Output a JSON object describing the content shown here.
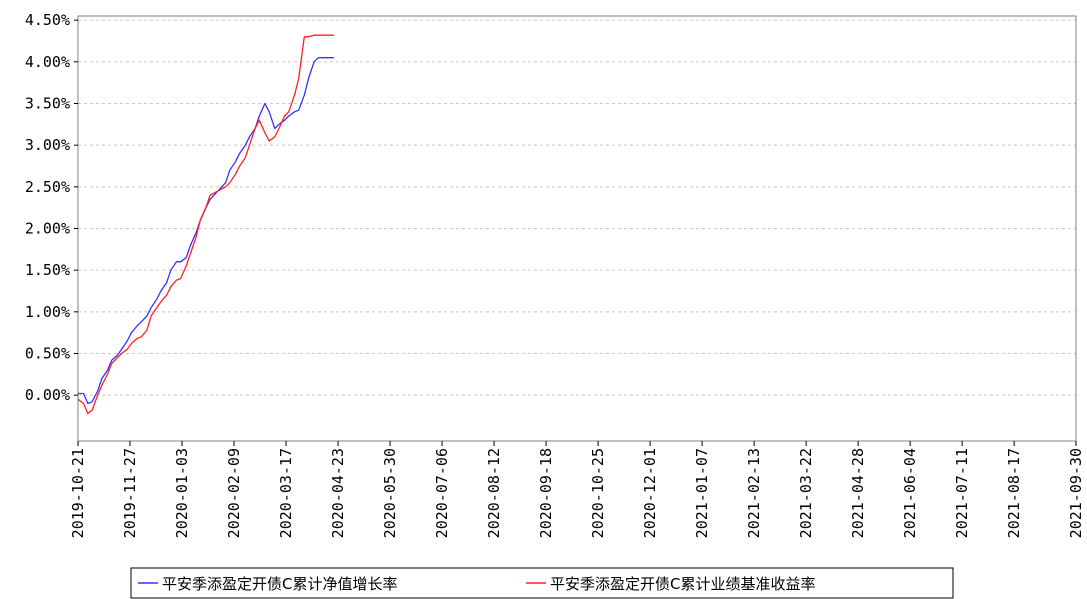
{
  "chart_data": {
    "type": "line",
    "title": "",
    "xlabel": "",
    "ylabel": "",
    "x_ticks": [
      "2019-10-21",
      "2019-11-27",
      "2020-01-03",
      "2020-02-09",
      "2020-03-17",
      "2020-04-23",
      "2020-05-30",
      "2020-07-06",
      "2020-08-12",
      "2020-09-18",
      "2020-10-25",
      "2020-12-01",
      "2021-01-07",
      "2021-02-13",
      "2021-03-22",
      "2021-04-28",
      "2021-06-04",
      "2021-07-11",
      "2021-08-17",
      "2021-09-30"
    ],
    "y_ticks": [
      "0.00%",
      "0.50%",
      "1.00%",
      "1.50%",
      "2.00%",
      "2.50%",
      "3.00%",
      "3.50%",
      "4.00%",
      "4.50%"
    ],
    "ylim": [
      -0.55,
      4.55
    ],
    "y_unit": "%",
    "grid": "horizontal-dashed",
    "legend_position": "bottom",
    "colors": {
      "nav": "#3333ff",
      "benchmark": "#ff2222"
    },
    "series": [
      {
        "name": "平安季添盈定开债C累计净值增长率",
        "color": "#3333ff",
        "x": [
          "2019-10-21",
          "2019-10-25",
          "2019-10-28",
          "2019-10-31",
          "2019-11-04",
          "2019-11-07",
          "2019-11-11",
          "2019-11-14",
          "2019-11-18",
          "2019-11-21",
          "2019-11-25",
          "2019-11-28",
          "2019-12-02",
          "2019-12-05",
          "2019-12-09",
          "2019-12-12",
          "2019-12-16",
          "2019-12-19",
          "2019-12-23",
          "2019-12-26",
          "2019-12-30",
          "2020-01-02",
          "2020-01-06",
          "2020-01-09",
          "2020-01-13",
          "2020-01-16",
          "2020-01-20",
          "2020-01-23",
          "2020-02-03",
          "2020-02-06",
          "2020-02-10",
          "2020-02-13",
          "2020-02-17",
          "2020-02-20",
          "2020-02-24",
          "2020-02-27",
          "2020-03-02",
          "2020-03-05",
          "2020-03-09",
          "2020-03-12",
          "2020-03-16",
          "2020-03-19",
          "2020-03-23",
          "2020-03-26",
          "2020-03-30",
          "2020-04-02",
          "2020-04-06",
          "2020-04-09",
          "2020-04-13",
          "2020-04-16",
          "2020-04-20"
        ],
        "y": [
          0.02,
          0.02,
          -0.1,
          -0.08,
          0.05,
          0.2,
          0.3,
          0.42,
          0.48,
          0.55,
          0.65,
          0.75,
          0.83,
          0.88,
          0.95,
          1.05,
          1.15,
          1.25,
          1.35,
          1.5,
          1.6,
          1.6,
          1.65,
          1.8,
          1.95,
          2.1,
          2.25,
          2.35,
          2.55,
          2.7,
          2.8,
          2.9,
          3.0,
          3.1,
          3.2,
          3.35,
          3.5,
          3.4,
          3.2,
          3.25,
          3.3,
          3.35,
          3.4,
          3.42,
          3.6,
          3.8,
          4.0,
          4.05,
          4.05,
          4.05,
          4.05
        ]
      },
      {
        "name": "平安季添盈定开债C累计业绩基准收益率",
        "color": "#ff2222",
        "x": [
          "2019-10-21",
          "2019-10-25",
          "2019-10-28",
          "2019-10-31",
          "2019-11-04",
          "2019-11-07",
          "2019-11-11",
          "2019-11-14",
          "2019-11-18",
          "2019-11-21",
          "2019-11-25",
          "2019-11-28",
          "2019-12-02",
          "2019-12-05",
          "2019-12-09",
          "2019-12-12",
          "2019-12-16",
          "2019-12-19",
          "2019-12-23",
          "2019-12-26",
          "2019-12-30",
          "2020-01-02",
          "2020-01-06",
          "2020-01-09",
          "2020-01-13",
          "2020-01-16",
          "2020-01-20",
          "2020-01-23",
          "2020-02-03",
          "2020-02-06",
          "2020-02-10",
          "2020-02-13",
          "2020-02-17",
          "2020-02-20",
          "2020-02-24",
          "2020-02-27",
          "2020-03-02",
          "2020-03-05",
          "2020-03-09",
          "2020-03-12",
          "2020-03-16",
          "2020-03-19",
          "2020-03-23",
          "2020-03-26",
          "2020-03-30",
          "2020-04-02",
          "2020-04-06",
          "2020-04-09",
          "2020-04-13",
          "2020-04-16",
          "2020-04-20"
        ],
        "y": [
          -0.05,
          -0.1,
          -0.22,
          -0.18,
          0.0,
          0.12,
          0.25,
          0.38,
          0.45,
          0.5,
          0.55,
          0.62,
          0.68,
          0.7,
          0.78,
          0.95,
          1.05,
          1.12,
          1.2,
          1.3,
          1.38,
          1.4,
          1.55,
          1.7,
          1.9,
          2.1,
          2.25,
          2.4,
          2.5,
          2.55,
          2.65,
          2.75,
          2.85,
          3.0,
          3.2,
          3.3,
          3.15,
          3.05,
          3.1,
          3.2,
          3.35,
          3.4,
          3.6,
          3.8,
          4.3,
          4.3,
          4.32,
          4.32,
          4.32,
          4.32,
          4.32
        ]
      }
    ]
  }
}
